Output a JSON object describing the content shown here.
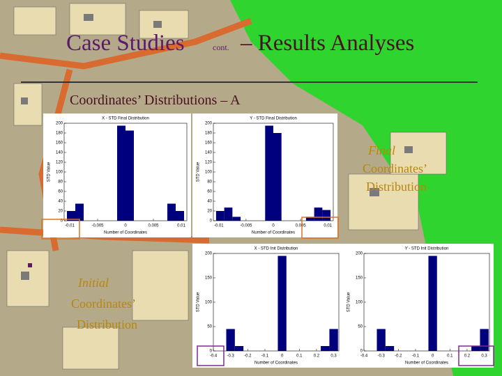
{
  "slide": {
    "title": "Case Studies",
    "title_note": "cont.",
    "title_rest": "– Results Analyses",
    "subtitle": "Coordinates’ Distributions – A",
    "final_label": [
      "Final",
      "Coordinates’",
      "Distribution"
    ],
    "initial_label": [
      "Initial",
      "Coordinates’",
      "Distribution"
    ]
  },
  "chart_data": [
    {
      "type": "histogram",
      "title": "X - STD Final Distribution",
      "xlabel": "Number of Coordinates",
      "ylabel": "STD Value",
      "color": "#00007f",
      "bins": [
        -0.0105,
        -0.009,
        -0.0075,
        -0.006,
        -0.0045,
        -0.003,
        -0.0015,
        0,
        0.0015,
        0.003,
        0.0045,
        0.006,
        0.0075,
        0.009,
        0.0105
      ],
      "values": [
        20,
        35,
        0,
        0,
        0,
        0,
        195,
        185,
        0,
        0,
        0,
        0,
        35,
        20
      ],
      "xlim": [
        -0.011,
        0.011
      ],
      "xticks": [
        -0.01,
        -0.005,
        0,
        0.005,
        0.01
      ],
      "ylim": [
        0,
        200
      ],
      "yticks": [
        0,
        20,
        40,
        60,
        80,
        100,
        120,
        140,
        160,
        180,
        200
      ]
    },
    {
      "type": "histogram",
      "title": "Y - STD Final Distribution",
      "xlabel": "Number of Coordinates",
      "ylabel": "STD Value",
      "color": "#00007f",
      "bins": [
        -0.0105,
        -0.009,
        -0.0075,
        -0.006,
        -0.0045,
        -0.003,
        -0.0015,
        0,
        0.0015,
        0.003,
        0.0045,
        0.006,
        0.0075,
        0.009,
        0.0105
      ],
      "values": [
        20,
        27,
        8,
        0,
        0,
        0,
        195,
        180,
        0,
        0,
        0,
        8,
        27,
        22
      ],
      "xlim": [
        -0.011,
        0.011
      ],
      "xticks": [
        -0.01,
        -0.005,
        0,
        0.005,
        0.01
      ],
      "ylim": [
        0,
        200
      ],
      "yticks": [
        0,
        20,
        40,
        60,
        80,
        100,
        120,
        140,
        160,
        180,
        200
      ]
    },
    {
      "type": "histogram",
      "title": "X - STD Init Distribution",
      "xlabel": "Number of Coordinates",
      "ylabel": "STD Value",
      "color": "#00007f",
      "bins": [
        -0.325,
        -0.275,
        -0.225,
        -0.175,
        -0.125,
        -0.075,
        -0.025,
        0.025,
        0.075,
        0.125,
        0.175,
        0.225,
        0.275,
        0.325
      ],
      "values": [
        45,
        10,
        0,
        0,
        0,
        0,
        195,
        0,
        0,
        0,
        0,
        10,
        45
      ],
      "xlim": [
        -0.4,
        0.33
      ],
      "xticks": [
        -0.4,
        -0.3,
        -0.2,
        -0.1,
        0,
        0.1,
        0.2,
        0.3
      ],
      "ylim": [
        0,
        200
      ],
      "yticks": [
        0,
        50,
        100,
        150,
        200
      ]
    },
    {
      "type": "histogram",
      "title": "Y - STD Init Distribution",
      "xlabel": "Number of Coordinates",
      "ylabel": "STD Value",
      "color": "#00007f",
      "bins": [
        -0.325,
        -0.275,
        -0.225,
        -0.175,
        -0.125,
        -0.075,
        -0.025,
        0.025,
        0.075,
        0.125,
        0.175,
        0.225,
        0.275,
        0.325
      ],
      "values": [
        45,
        10,
        0,
        0,
        0,
        0,
        195,
        0,
        0,
        0,
        0,
        10,
        45
      ],
      "xlim": [
        -0.4,
        0.33
      ],
      "xticks": [
        -0.4,
        -0.3,
        -0.2,
        -0.1,
        0,
        0.1,
        0.2,
        0.3
      ],
      "ylim": [
        0,
        200
      ],
      "yticks": [
        0,
        50,
        100,
        150,
        200
      ]
    }
  ]
}
